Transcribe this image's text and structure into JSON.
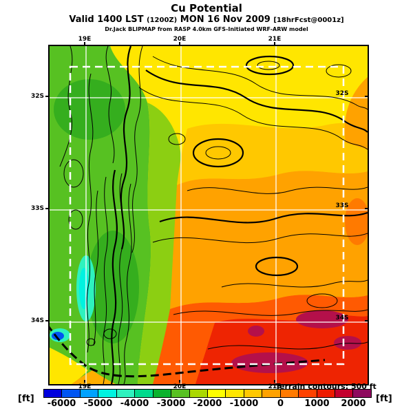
{
  "header": {
    "title": "Cu Potential",
    "valid": {
      "prefix": "Valid 1400 LST",
      "zulu": "(1200Z)",
      "date": "MON 16 Nov 2009",
      "fcst": "[18hrFcst@0001z]"
    },
    "model": "Dr.Jack BLIPMAP from RASP 4.0km GFS-Initiated WRF-ARW model"
  },
  "map": {
    "lon_labels": [
      "19E",
      "20E",
      "21E"
    ],
    "lat_labels": [
      "32S",
      "33S",
      "34S"
    ],
    "terrain_note": "Terrain contours: 500 ft"
  },
  "colorbar": {
    "unit": "[ft]",
    "labels": [
      "-6000",
      "-5000",
      "-4000",
      "-3000",
      "-2000",
      "-1000",
      "0",
      "1000",
      "2000"
    ],
    "colors": [
      "#0000DE",
      "#0055F2",
      "#00A2FF",
      "#00F2E0",
      "#2EF2BE",
      "#00DA8C",
      "#0AB32E",
      "#57C122",
      "#AAD800",
      "#FFFF00",
      "#FFE600",
      "#FFC800",
      "#FFA200",
      "#FF7A00",
      "#FF4200",
      "#EE1C00",
      "#C4002E",
      "#8E0A5E"
    ],
    "value_min_ft": -6500,
    "value_max_ft": 2500,
    "segment_step_ft": 500
  }
}
